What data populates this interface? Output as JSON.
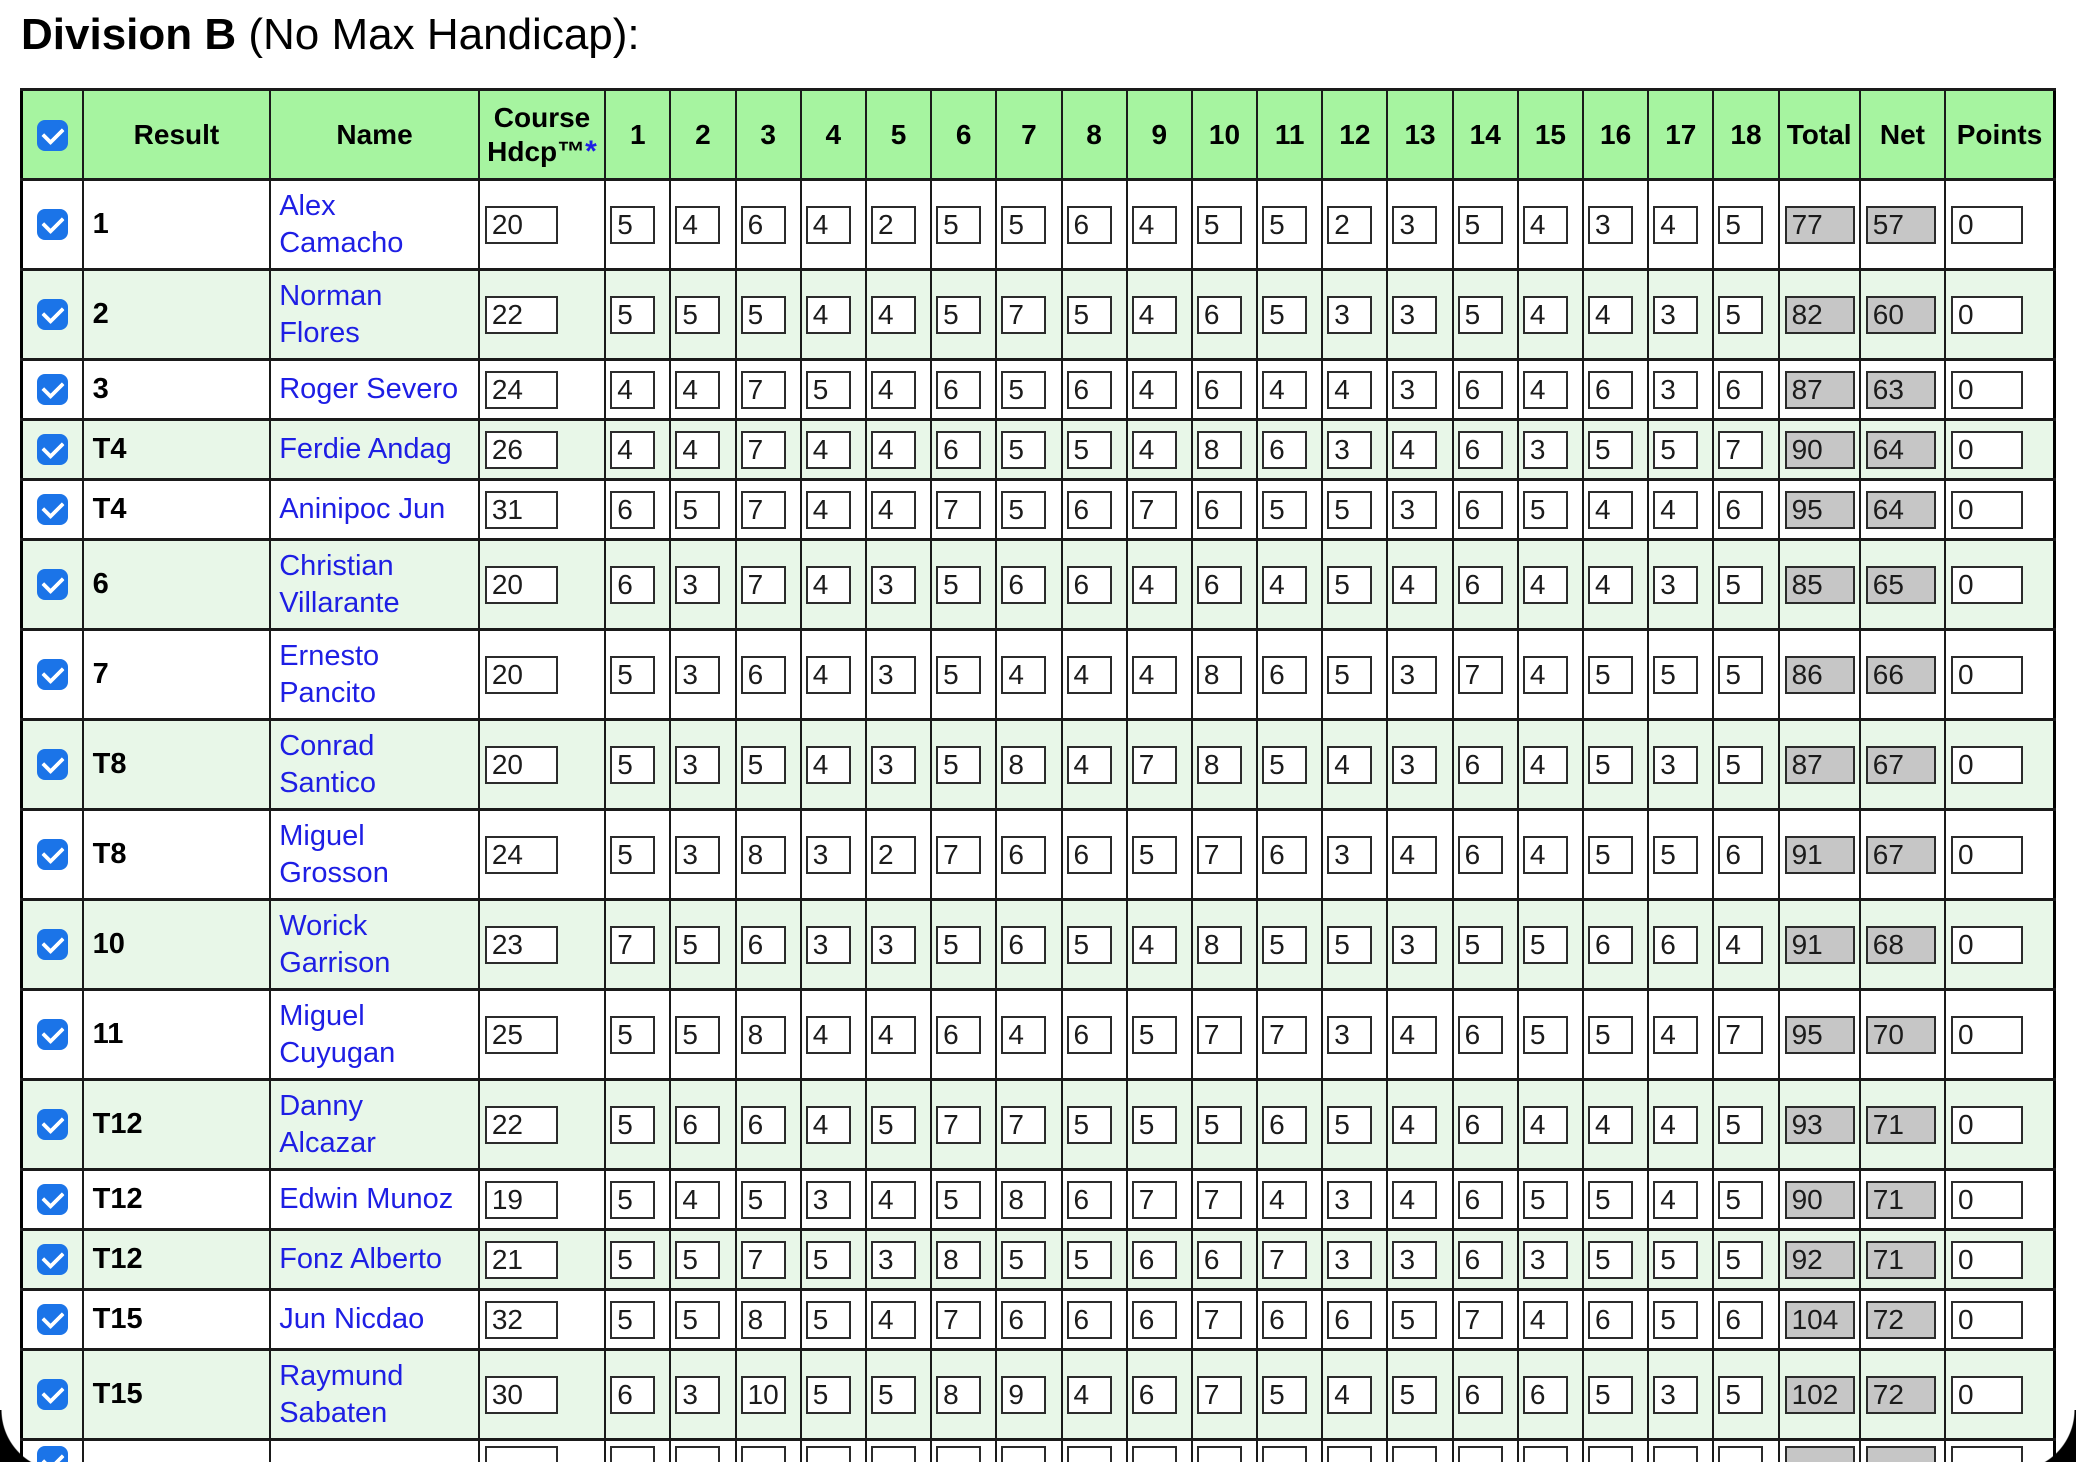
{
  "page_title": {
    "division": "Division B",
    "subtitle": " (No Max Handicap):"
  },
  "colors": {
    "header_green": "#a6f4a0",
    "row_stripe_green": "#e8f7e8",
    "checkbox_blue": "#1b74e8",
    "link_blue": "#1e1ee4",
    "readonly_input_gray": "#c6c6c6"
  },
  "table": {
    "header": {
      "result": "Result",
      "name": "Name",
      "course_hdcp": {
        "line1": "Course",
        "line2": "Hdcp",
        "tm": "™",
        "asterisk": "*"
      },
      "holes": [
        "1",
        "2",
        "3",
        "4",
        "5",
        "6",
        "7",
        "8",
        "9",
        "10",
        "11",
        "12",
        "13",
        "14",
        "15",
        "16",
        "17",
        "18"
      ],
      "total": "Total",
      "net": "Net",
      "points": "Points"
    },
    "rows": [
      {
        "checked": true,
        "result": "1",
        "name": "Alex\nCamacho",
        "hdcp": "20",
        "holes": [
          "5",
          "4",
          "6",
          "4",
          "2",
          "5",
          "5",
          "6",
          "4",
          "5",
          "5",
          "2",
          "3",
          "5",
          "4",
          "3",
          "4",
          "5"
        ],
        "total": "77",
        "net": "57",
        "points": "0"
      },
      {
        "checked": true,
        "result": "2",
        "name": "Norman\nFlores",
        "hdcp": "22",
        "holes": [
          "5",
          "5",
          "5",
          "4",
          "4",
          "5",
          "7",
          "5",
          "4",
          "6",
          "5",
          "3",
          "3",
          "5",
          "4",
          "4",
          "3",
          "5"
        ],
        "total": "82",
        "net": "60",
        "points": "0"
      },
      {
        "checked": true,
        "result": "3",
        "name": "Roger Severo",
        "hdcp": "24",
        "holes": [
          "4",
          "4",
          "7",
          "5",
          "4",
          "6",
          "5",
          "6",
          "4",
          "6",
          "4",
          "4",
          "3",
          "6",
          "4",
          "6",
          "3",
          "6"
        ],
        "total": "87",
        "net": "63",
        "points": "0"
      },
      {
        "checked": true,
        "result": "T4",
        "name": "Ferdie Andag",
        "hdcp": "26",
        "holes": [
          "4",
          "4",
          "7",
          "4",
          "4",
          "6",
          "5",
          "5",
          "4",
          "8",
          "6",
          "3",
          "4",
          "6",
          "3",
          "5",
          "5",
          "7"
        ],
        "total": "90",
        "net": "64",
        "points": "0"
      },
      {
        "checked": true,
        "result": "T4",
        "name": "Aninipoc Jun",
        "hdcp": "31",
        "holes": [
          "6",
          "5",
          "7",
          "4",
          "4",
          "7",
          "5",
          "6",
          "7",
          "6",
          "5",
          "5",
          "3",
          "6",
          "5",
          "4",
          "4",
          "6"
        ],
        "total": "95",
        "net": "64",
        "points": "0"
      },
      {
        "checked": true,
        "result": "6",
        "name": "Christian\nVillarante",
        "hdcp": "20",
        "holes": [
          "6",
          "3",
          "7",
          "4",
          "3",
          "5",
          "6",
          "6",
          "4",
          "6",
          "4",
          "5",
          "4",
          "6",
          "4",
          "4",
          "3",
          "5"
        ],
        "total": "85",
        "net": "65",
        "points": "0"
      },
      {
        "checked": true,
        "result": "7",
        "name": "Ernesto\nPancito",
        "hdcp": "20",
        "holes": [
          "5",
          "3",
          "6",
          "4",
          "3",
          "5",
          "4",
          "4",
          "4",
          "8",
          "6",
          "5",
          "3",
          "7",
          "4",
          "5",
          "5",
          "5"
        ],
        "total": "86",
        "net": "66",
        "points": "0"
      },
      {
        "checked": true,
        "result": "T8",
        "name": "Conrad\nSantico",
        "hdcp": "20",
        "holes": [
          "5",
          "3",
          "5",
          "4",
          "3",
          "5",
          "8",
          "4",
          "7",
          "8",
          "5",
          "4",
          "3",
          "6",
          "4",
          "5",
          "3",
          "5"
        ],
        "total": "87",
        "net": "67",
        "points": "0"
      },
      {
        "checked": true,
        "result": "T8",
        "name": "Miguel\nGrosson",
        "hdcp": "24",
        "holes": [
          "5",
          "3",
          "8",
          "3",
          "2",
          "7",
          "6",
          "6",
          "5",
          "7",
          "6",
          "3",
          "4",
          "6",
          "4",
          "5",
          "5",
          "6"
        ],
        "total": "91",
        "net": "67",
        "points": "0"
      },
      {
        "checked": true,
        "result": "10",
        "name": "Worick\nGarrison",
        "hdcp": "23",
        "holes": [
          "7",
          "5",
          "6",
          "3",
          "3",
          "5",
          "6",
          "5",
          "4",
          "8",
          "5",
          "5",
          "3",
          "5",
          "5",
          "6",
          "6",
          "4"
        ],
        "total": "91",
        "net": "68",
        "points": "0"
      },
      {
        "checked": true,
        "result": "11",
        "name": "Miguel\nCuyugan",
        "hdcp": "25",
        "holes": [
          "5",
          "5",
          "8",
          "4",
          "4",
          "6",
          "4",
          "6",
          "5",
          "7",
          "7",
          "3",
          "4",
          "6",
          "5",
          "5",
          "4",
          "7"
        ],
        "total": "95",
        "net": "70",
        "points": "0"
      },
      {
        "checked": true,
        "result": "T12",
        "name": "Danny\nAlcazar",
        "hdcp": "22",
        "holes": [
          "5",
          "6",
          "6",
          "4",
          "5",
          "7",
          "7",
          "5",
          "5",
          "5",
          "6",
          "5",
          "4",
          "6",
          "4",
          "4",
          "4",
          "5"
        ],
        "total": "93",
        "net": "71",
        "points": "0"
      },
      {
        "checked": true,
        "result": "T12",
        "name": "Edwin Munoz",
        "hdcp": "19",
        "holes": [
          "5",
          "4",
          "5",
          "3",
          "4",
          "5",
          "8",
          "6",
          "7",
          "7",
          "4",
          "3",
          "4",
          "6",
          "5",
          "5",
          "4",
          "5"
        ],
        "total": "90",
        "net": "71",
        "points": "0"
      },
      {
        "checked": true,
        "result": "T12",
        "name": "Fonz Alberto",
        "hdcp": "21",
        "holes": [
          "5",
          "5",
          "7",
          "5",
          "3",
          "8",
          "5",
          "5",
          "6",
          "6",
          "7",
          "3",
          "3",
          "6",
          "3",
          "5",
          "5",
          "5"
        ],
        "total": "92",
        "net": "71",
        "points": "0"
      },
      {
        "checked": true,
        "result": "T15",
        "name": "Jun Nicdao",
        "hdcp": "32",
        "holes": [
          "5",
          "5",
          "8",
          "5",
          "4",
          "7",
          "6",
          "6",
          "6",
          "7",
          "6",
          "6",
          "5",
          "7",
          "4",
          "6",
          "5",
          "6"
        ],
        "total": "104",
        "net": "72",
        "points": "0"
      },
      {
        "checked": true,
        "result": "T15",
        "name": "Raymund\nSabaten",
        "hdcp": "30",
        "holes": [
          "6",
          "3",
          "10",
          "5",
          "5",
          "8",
          "9",
          "4",
          "6",
          "7",
          "5",
          "4",
          "5",
          "6",
          "6",
          "5",
          "3",
          "5"
        ],
        "total": "102",
        "net": "72",
        "points": "0"
      }
    ],
    "partial_row": {
      "checked": true,
      "partial": true,
      "result": "",
      "name": "",
      "hdcp": "",
      "holes": [
        "",
        "",
        "",
        "",
        "",
        "",
        "",
        "",
        "",
        "",
        "",
        "",
        "",
        "",
        "",
        "",
        "",
        ""
      ],
      "total": "",
      "net": "",
      "points": ""
    }
  }
}
